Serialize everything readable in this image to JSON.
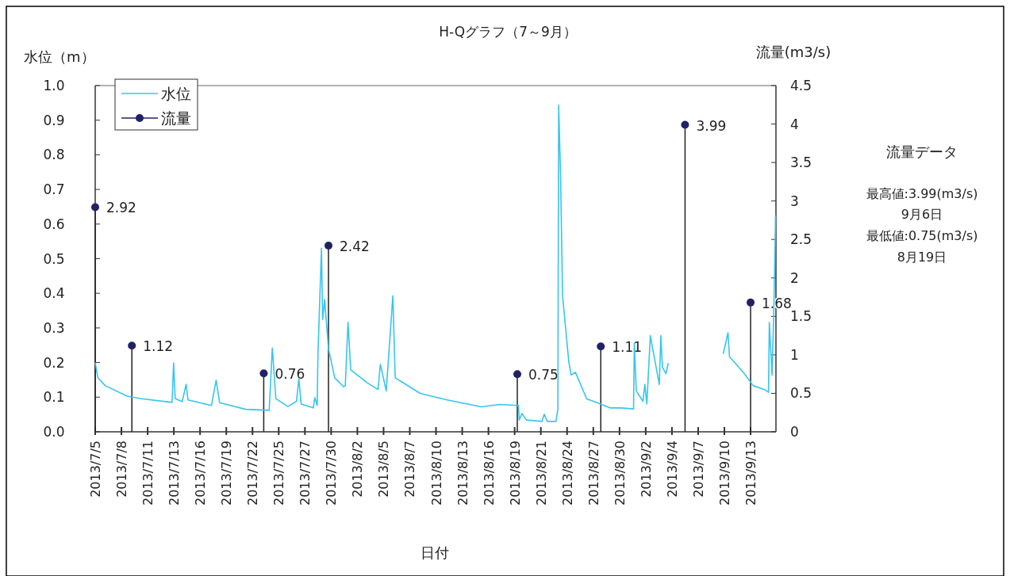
{
  "chart_data": {
    "type": "line",
    "title": "H-Qグラフ（7～9月）",
    "xlabel": "日付",
    "ylabel": "水位（m）",
    "y2label": "流量(m3/s)",
    "xlim": [
      "2013-07-05T00:00",
      "2013-09-15T17:00"
    ],
    "xticks": [
      {
        "value": "2013-07-05T00:00",
        "label": "2013/7/5"
      },
      {
        "value": "2013-07-07T19:12",
        "label": "2013/7/8"
      },
      {
        "value": "2013-07-10T14:24",
        "label": "2013/7/11"
      },
      {
        "value": "2013-07-13T09:36",
        "label": "2013/7/13"
      },
      {
        "value": "2013-07-16T04:48",
        "label": "2013/7/16"
      },
      {
        "value": "2013-07-19T00:00",
        "label": "2013/7/19"
      },
      {
        "value": "2013-07-21T19:12",
        "label": "2013/7/22"
      },
      {
        "value": "2013-07-24T14:24",
        "label": "2013/7/25"
      },
      {
        "value": "2013-07-27T09:36",
        "label": "2013/7/27"
      },
      {
        "value": "2013-07-30T04:48",
        "label": "2013/7/30"
      },
      {
        "value": "2013-08-02T00:00",
        "label": "2013/8/2"
      },
      {
        "value": "2013-08-04T19:12",
        "label": "2013/8/5"
      },
      {
        "value": "2013-08-07T14:24",
        "label": "2013/8/7"
      },
      {
        "value": "2013-08-10T09:36",
        "label": "2013/8/10"
      },
      {
        "value": "2013-08-13T04:48",
        "label": "2013/8/13"
      },
      {
        "value": "2013-08-16T00:00",
        "label": "2013/8/16"
      },
      {
        "value": "2013-08-18T19:12",
        "label": "2013/8/19"
      },
      {
        "value": "2013-08-21T14:24",
        "label": "2013/8/21"
      },
      {
        "value": "2013-08-24T09:36",
        "label": "2013/8/24"
      },
      {
        "value": "2013-08-27T04:48",
        "label": "2013/8/27"
      },
      {
        "value": "2013-08-30T00:00",
        "label": "2013/8/30"
      },
      {
        "value": "2013-09-01T19:12",
        "label": "2013/9/2"
      },
      {
        "value": "2013-09-04T14:24",
        "label": "2013/9/4"
      },
      {
        "value": "2013-09-07T09:36",
        "label": "2013/9/7"
      },
      {
        "value": "2013-09-10T04:48",
        "label": "2013/9/10"
      },
      {
        "value": "2013-09-13T00:00",
        "label": "2013/9/13"
      }
    ],
    "ylim": [
      0,
      1
    ],
    "yticks": [
      {
        "value": 0,
        "label": "0.0"
      },
      {
        "value": 0.1,
        "label": "0.1"
      },
      {
        "value": 0.2,
        "label": "0.2"
      },
      {
        "value": 0.3,
        "label": "0.3"
      },
      {
        "value": 0.4,
        "label": "0.4"
      },
      {
        "value": 0.5,
        "label": "0.5"
      },
      {
        "value": 0.6,
        "label": "0.6"
      },
      {
        "value": 0.7,
        "label": "0.7"
      },
      {
        "value": 0.8,
        "label": "0.8"
      },
      {
        "value": 0.9,
        "label": "0.9"
      },
      {
        "value": 1,
        "label": "1.0"
      }
    ],
    "y2lim": [
      0,
      4.5
    ],
    "y2ticks": [
      0,
      0.5,
      1,
      1.5,
      2,
      2.5,
      3,
      3.5,
      4,
      4.5
    ],
    "legend": "top left",
    "annotations": [
      "流量データ",
      "最高値:3.99(m3/s)",
      "9月6日",
      "最低値:0.75(m3/s)",
      "8月19日"
    ],
    "series": [
      {
        "name": "水位",
        "color": "#36c5f0",
        "x": [
          "2013-07-05T00:00",
          "2013-07-05T07:00",
          "2013-07-06T02:00",
          "2013-07-08T10:00",
          "2013-07-09T19:00",
          "2013-07-13T05:00",
          "2013-07-13T09:00",
          "2013-07-13T13:00",
          "2013-07-14T07:00",
          "2013-07-14T17:00",
          "2013-07-14T22:00",
          "2013-07-17T10:00",
          "2013-07-17T22:00",
          "2013-07-18T07:00",
          "2013-07-21T02:00",
          "2013-07-23T14:00",
          "2013-07-23T22:00",
          "2013-07-24T07:00",
          "2013-07-25T14:00",
          "2013-07-26T12:00",
          "2013-07-26T18:00",
          "2013-07-27T00:00",
          "2013-07-28T07:00",
          "2013-07-28T11:00",
          "2013-07-28T17:00",
          "2013-07-28T19:00",
          "2013-07-29T04:00",
          "2013-07-29T07:00",
          "2013-07-29T12:00",
          "2013-07-29T22:00",
          "2013-07-30T14:00",
          "2013-07-31T13:00",
          "2013-07-31T17:00",
          "2013-08-01T00:00",
          "2013-08-01T07:00",
          "2013-08-03T02:00",
          "2013-08-04T05:00",
          "2013-08-04T11:00",
          "2013-08-05T02:00",
          "2013-08-05T19:00",
          "2013-08-06T01:00",
          "2013-08-08T17:00",
          "2013-08-11T14:00",
          "2013-08-15T06:00",
          "2013-08-17T05:00",
          "2013-08-19T05:00",
          "2013-08-19T07:00",
          "2013-08-19T14:00",
          "2013-08-20T01:00",
          "2013-08-21T17:00",
          "2013-08-21T23:00",
          "2013-08-22T07:00",
          "2013-08-23T05:00",
          "2013-08-23T10:00",
          "2013-08-23T12:00",
          "2013-08-23T17:00",
          "2013-08-23T22:00",
          "2013-08-24T14:00",
          "2013-08-24T20:00",
          "2013-08-25T07:00",
          "2013-08-26T12:00",
          "2013-08-27T12:00",
          "2013-08-29T00:00",
          "2013-08-30T05:00",
          "2013-08-31T12:00",
          "2013-08-31T14:00",
          "2013-08-31T19:00",
          "2013-09-01T12:00",
          "2013-09-01T17:00",
          "2013-09-01T22:00",
          "2013-09-02T07:00",
          "2013-09-02T13:00",
          "2013-09-03T06:00",
          "2013-09-03T10:00",
          "2013-09-03T14:00",
          "2013-09-03T23:00",
          "2013-09-04T05:00",
          "2013-09-06T00:00",
          "2013-09-10T02:00",
          "2013-09-10T14:00",
          "2013-09-10T18:00",
          "2013-09-12T05:00",
          "2013-09-13T07:00",
          "2013-09-14T12:00",
          "2013-09-14T22:00",
          "2013-09-15T00:00",
          "2013-09-15T07:00",
          "2013-09-15T11:00",
          "2013-09-15T14:00",
          "2013-09-15T16:00"
        ],
        "values": [
          0.2,
          0.156,
          0.133,
          0.103,
          0.096,
          0.085,
          0.199,
          0.096,
          0.087,
          0.137,
          0.092,
          0.076,
          0.149,
          0.084,
          0.065,
          0.062,
          0.242,
          0.096,
          0.073,
          0.088,
          0.153,
          0.08,
          0.069,
          0.099,
          0.076,
          0.225,
          0.53,
          0.324,
          0.382,
          0.24,
          0.156,
          0.13,
          0.133,
          0.316,
          0.179,
          0.141,
          0.122,
          0.195,
          0.118,
          0.393,
          0.156,
          0.111,
          0.092,
          0.072,
          0.079,
          0.076,
          0.034,
          0.053,
          0.034,
          0.03,
          0.051,
          0.03,
          0.03,
          0.065,
          0.943,
          0.736,
          0.393,
          0.202,
          0.164,
          0.172,
          0.095,
          0.085,
          0.069,
          0.069,
          0.066,
          0.256,
          0.118,
          0.088,
          0.137,
          0.08,
          0.278,
          0.24,
          0.137,
          0.278,
          0.187,
          0.168,
          0.198,
          null,
          0.225,
          0.286,
          0.217,
          0.172,
          0.133,
          0.122,
          0.114,
          0.316,
          0.164,
          0.324,
          0.492,
          0.625
        ]
      },
      {
        "name": "流量",
        "type": "lollipop",
        "axis": "y2",
        "color": "#1f2266",
        "marker": "circle",
        "x": [
          "2013-07-05T00:00",
          "2013-07-08T22:00",
          "2013-07-23T00:00",
          "2013-07-29T22:00",
          "2013-08-19T02:00",
          "2013-08-28T00:00",
          "2013-09-06T00:00",
          "2013-09-13T00:00"
        ],
        "values": [
          2.92,
          1.12,
          0.76,
          2.42,
          0.75,
          1.11,
          3.99,
          1.68
        ],
        "value_labels": [
          "2.92",
          "1.12",
          "0.76",
          "2.42",
          "0.75",
          "1.11",
          "3.99",
          "1.68"
        ]
      }
    ]
  }
}
